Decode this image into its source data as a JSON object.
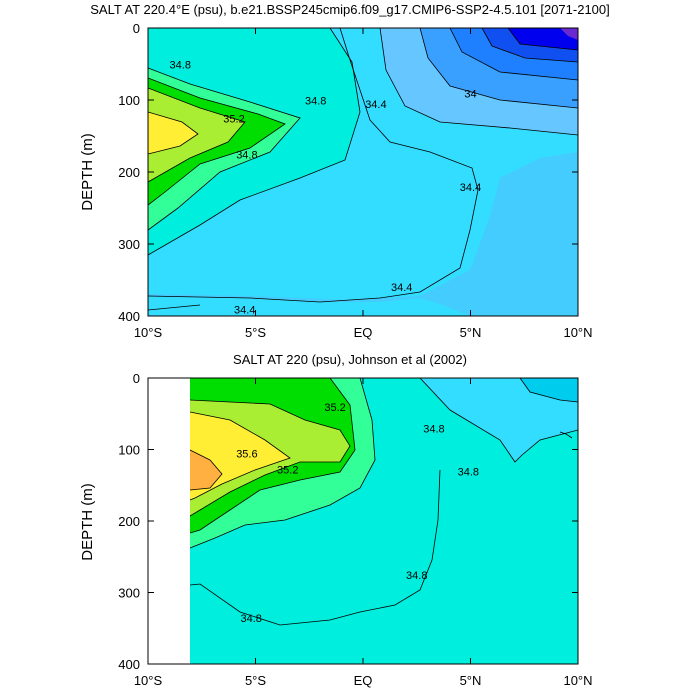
{
  "chart_data": [
    {
      "type": "contour",
      "title": "SALT AT 220.4°E (psu), b.e21.BSSP245cmip6.f09_g17.CMIP6-SSP2-4.5.101 [2071-2100]",
      "xlabel": "",
      "ylabel": "DEPTH (m)",
      "xlim": [
        -10,
        10
      ],
      "ylim": [
        400,
        0
      ],
      "x_ticks": [
        "10°S",
        "5°S",
        "EQ",
        "5°N",
        "10°N"
      ],
      "y_ticks": [
        "0",
        "100",
        "200",
        "300",
        "400"
      ],
      "contour_labels": [
        {
          "text": "34.8",
          "lat": -8.5,
          "depth": 55
        },
        {
          "text": "35.2",
          "lat": -6.0,
          "depth": 130
        },
        {
          "text": "34.8",
          "lat": -2.2,
          "depth": 105
        },
        {
          "text": "34.8",
          "lat": -5.4,
          "depth": 180
        },
        {
          "text": "34.4",
          "lat": 0.6,
          "depth": 110
        },
        {
          "text": "34",
          "lat": 5.0,
          "depth": 95
        },
        {
          "text": "34.4",
          "lat": 5.0,
          "depth": 225
        },
        {
          "text": "34.4",
          "lat": 1.8,
          "depth": 364
        },
        {
          "text": "34.4",
          "lat": -5.5,
          "depth": 395
        }
      ]
    },
    {
      "type": "contour",
      "title": "SALT AT 220 (psu), Johnson et al (2002)",
      "xlabel": "",
      "ylabel": "DEPTH (m)",
      "xlim": [
        -10,
        10
      ],
      "ylim": [
        400,
        0
      ],
      "x_ticks": [
        "10°S",
        "5°S",
        "EQ",
        "5°N",
        "10°N"
      ],
      "y_ticks": [
        "0",
        "100",
        "200",
        "300",
        "400"
      ],
      "data_start_lat": -8.0,
      "contour_labels": [
        {
          "text": "35.2",
          "lat": -1.3,
          "depth": 45
        },
        {
          "text": "34.8",
          "lat": 3.3,
          "depth": 75
        },
        {
          "text": "35.6",
          "lat": -5.4,
          "depth": 110
        },
        {
          "text": "35.2",
          "lat": -3.5,
          "depth": 132
        },
        {
          "text": "34.8",
          "lat": 4.9,
          "depth": 135
        },
        {
          "text": "34.8",
          "lat": 2.5,
          "depth": 280
        },
        {
          "text": "34.8",
          "lat": -5.2,
          "depth": 340
        }
      ]
    }
  ],
  "colors": {
    "c34_0": "#1e90ff",
    "c34_4": "#33ddff",
    "c34_8": "#00eedd",
    "c35_0": "#33ff99",
    "c35_2": "#00dd00",
    "c35_6": "#aaee33",
    "c36_0": "#ffee33",
    "c36_4": "#ffb040"
  }
}
